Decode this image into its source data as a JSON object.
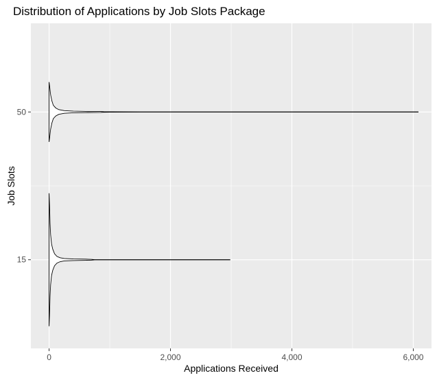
{
  "chart_data": {
    "type": "violin",
    "title": "Distribution of Applications by Job Slots Package",
    "xlabel": "Applications Received",
    "ylabel": "Job Slots",
    "orientation": "horizontal",
    "xlim": [
      -300,
      6300
    ],
    "x_ticks": [
      0,
      2000,
      4000,
      6000
    ],
    "x_tick_labels": [
      "0",
      "2,000",
      "4,000",
      "6,000"
    ],
    "categories": [
      "15",
      "50"
    ],
    "grid": true,
    "series": [
      {
        "category": "15",
        "max": 2980,
        "profile": [
          [
            0,
            1.0
          ],
          [
            8,
            0.82
          ],
          [
            16,
            0.55
          ],
          [
            25,
            0.38
          ],
          [
            40,
            0.24
          ],
          [
            60,
            0.16
          ],
          [
            90,
            0.09
          ],
          [
            130,
            0.05
          ],
          [
            180,
            0.03
          ],
          [
            250,
            0.018
          ],
          [
            400,
            0.012
          ],
          [
            600,
            0.009
          ],
          [
            700,
            0.006
          ],
          [
            750,
            0.002
          ],
          [
            1000,
            0.0015
          ],
          [
            2980,
            0.0015
          ]
        ]
      },
      {
        "category": "50",
        "max": 6080,
        "profile": [
          [
            0,
            0.45
          ],
          [
            10,
            0.38
          ],
          [
            25,
            0.26
          ],
          [
            45,
            0.17
          ],
          [
            70,
            0.1
          ],
          [
            110,
            0.06
          ],
          [
            160,
            0.035
          ],
          [
            250,
            0.02
          ],
          [
            400,
            0.012
          ],
          [
            600,
            0.009
          ],
          [
            850,
            0.007
          ],
          [
            900,
            0.004
          ],
          [
            1000,
            0.003
          ],
          [
            1500,
            0.002
          ],
          [
            1520,
            0.0015
          ],
          [
            6080,
            0.0015
          ]
        ]
      }
    ]
  }
}
